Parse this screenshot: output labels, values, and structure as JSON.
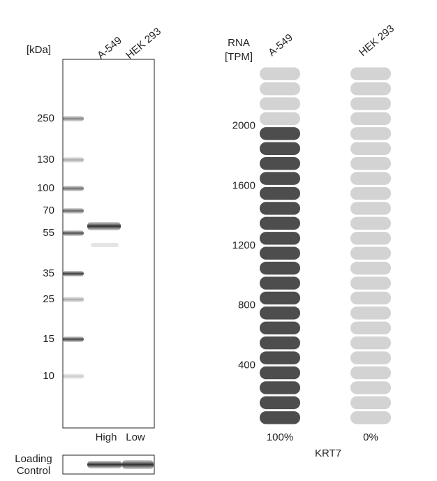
{
  "blot": {
    "unit": "[kDa]",
    "lanes": [
      "A-549",
      "HEK 293"
    ],
    "markers": [
      "250",
      "130",
      "100",
      "70",
      "55",
      "35",
      "25",
      "15",
      "10"
    ],
    "levels": [
      "High",
      "Low"
    ],
    "loading_label": [
      "Loading",
      "Control"
    ]
  },
  "chart_data": {
    "type": "pill-bar",
    "y_label": [
      "RNA",
      "[TPM]"
    ],
    "categories": [
      "A-549",
      "HEK 293"
    ],
    "values": [
      2000,
      0
    ],
    "percent_labels": [
      "100%",
      "0%"
    ],
    "gene": "KRT7",
    "ylim": [
      0,
      2400
    ],
    "yticks": [
      400,
      800,
      1200,
      1600,
      2000
    ],
    "filled_color": "#4d4d4d",
    "empty_color": "#d3d3d3"
  }
}
